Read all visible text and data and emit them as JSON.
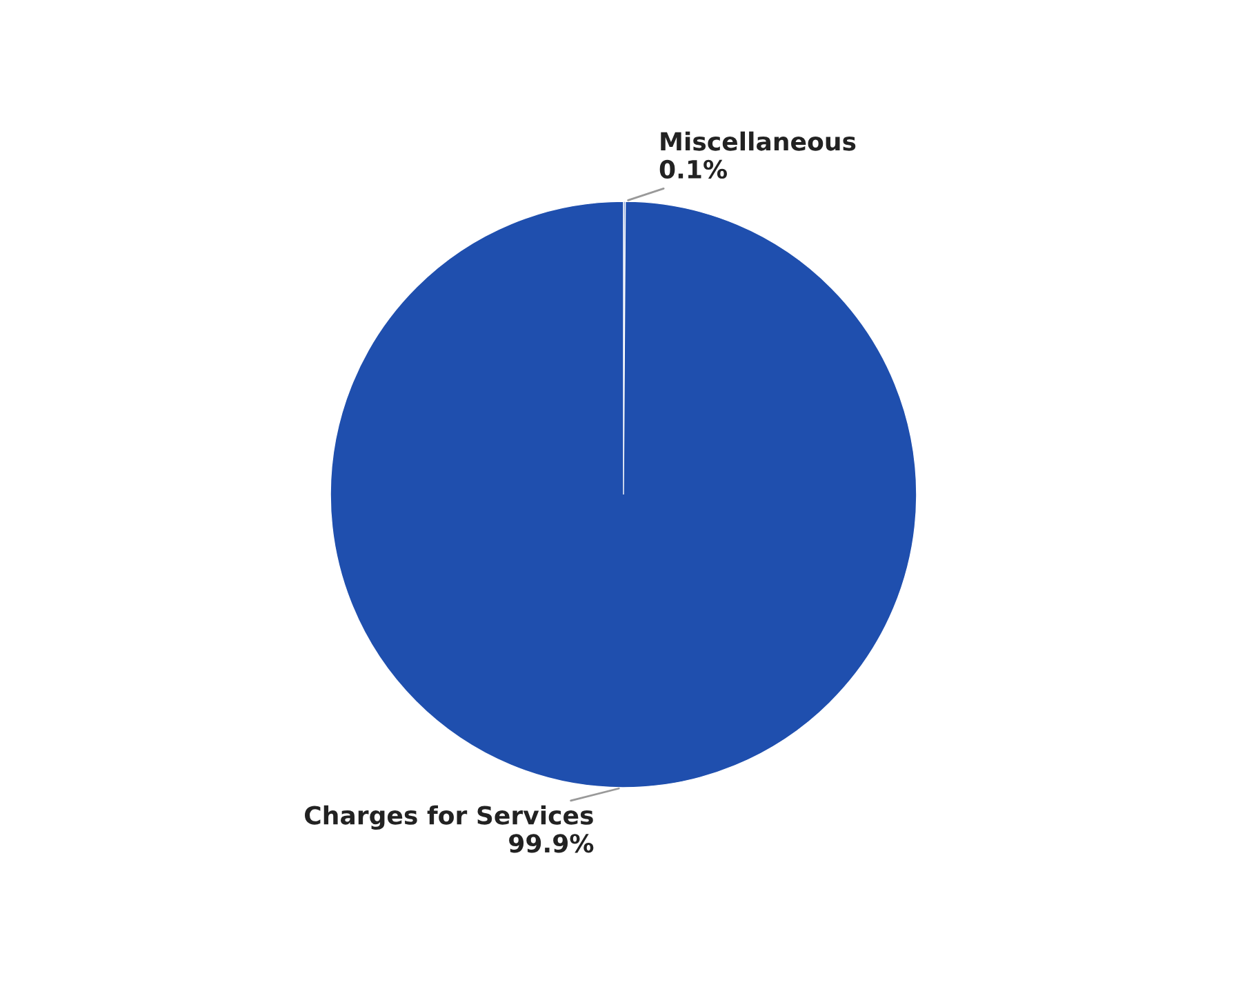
{
  "chart_data": {
    "type": "pie",
    "categories": [
      "Miscellaneous",
      "Charges for Services"
    ],
    "values": [
      0.1,
      99.9
    ],
    "colors": [
      "#6f8fd0",
      "#1f4fae"
    ],
    "value_labels": [
      "0.1%",
      "99.9%"
    ]
  }
}
